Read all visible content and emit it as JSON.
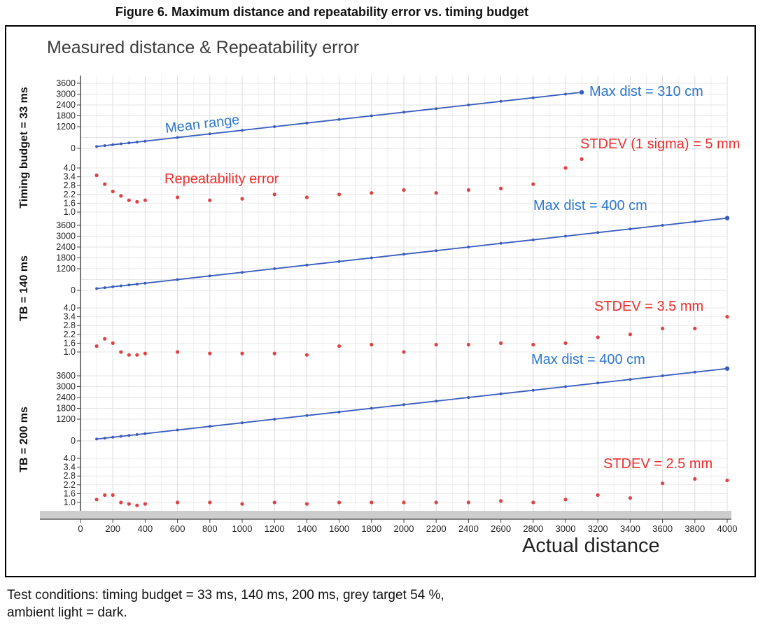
{
  "figure": {
    "caption": "Figure 6. Maximum distance and repeatability error vs. timing budget"
  },
  "notes": {
    "line1": "Test conditions: timing budget = 33 ms, 140 ms, 200 ms, grey target 54 %,",
    "line2": "ambient light = dark."
  },
  "chart_data": {
    "type": "line",
    "title": "Measured distance & Repeatability error",
    "xlabel": "Actual distance",
    "xlim": [
      0,
      4000
    ],
    "x_ticks": [
      0,
      200,
      400,
      600,
      800,
      1000,
      1200,
      1400,
      1600,
      1800,
      2000,
      2200,
      2400,
      2600,
      2800,
      3000,
      3200,
      3400,
      3600,
      3800,
      4000
    ],
    "range_axis": {
      "tick_labels": [
        3600,
        3000,
        2400,
        1800,
        1200,
        0
      ],
      "grid_step": 600,
      "lim": [
        0,
        3600
      ],
      "units": "mm"
    },
    "error_axis": {
      "ticks": [
        1.0,
        1.6,
        2.2,
        2.8,
        3.4,
        4.0
      ],
      "lim": [
        1.0,
        4.0
      ],
      "units": "mm"
    },
    "series_labels": {
      "mean_range": "Mean range",
      "repeatability": "Repeatability error"
    },
    "colors": {
      "mean_range": "#3a5dbe",
      "repeatability": "#e04343",
      "blue_text": "#2e77d0",
      "red_text": "#f22d2d"
    },
    "panels": [
      {
        "panel_label": "Timing budget = 33 ms",
        "max_dist_label": "Max dist = 310 cm",
        "stdev_label": "STDEV (1 sigma) = 5 mm",
        "x": [
          100,
          150,
          200,
          250,
          300,
          350,
          400,
          600,
          800,
          1000,
          1200,
          1400,
          1600,
          1800,
          2000,
          2200,
          2400,
          2600,
          2800,
          3000,
          3100
        ],
        "mean_range": [
          100,
          150,
          200,
          250,
          300,
          350,
          400,
          600,
          800,
          1000,
          1200,
          1400,
          1600,
          1800,
          2000,
          2200,
          2400,
          2600,
          2800,
          3000,
          3100
        ],
        "repeatability": [
          3.5,
          2.9,
          2.4,
          2.1,
          1.8,
          1.7,
          1.8,
          2.0,
          1.8,
          1.9,
          2.2,
          2.0,
          2.2,
          2.3,
          2.5,
          2.3,
          2.5,
          2.6,
          2.9,
          4.0,
          4.6
        ]
      },
      {
        "panel_label": "TB = 140 ms",
        "max_dist_label": "Max dist = 400 cm",
        "stdev_label": "STDEV = 3.5 mm",
        "x": [
          100,
          150,
          200,
          250,
          300,
          350,
          400,
          600,
          800,
          1000,
          1200,
          1400,
          1600,
          1800,
          2000,
          2200,
          2400,
          2600,
          2800,
          3000,
          3200,
          3400,
          3600,
          3800,
          4000
        ],
        "mean_range": [
          100,
          150,
          200,
          250,
          300,
          350,
          400,
          600,
          800,
          1000,
          1200,
          1400,
          1600,
          1800,
          2000,
          2200,
          2400,
          2600,
          2800,
          3000,
          3200,
          3400,
          3600,
          3800,
          4000
        ],
        "repeatability": [
          1.4,
          1.9,
          1.6,
          1.0,
          0.8,
          0.8,
          0.9,
          1.0,
          0.9,
          0.9,
          0.9,
          0.8,
          1.4,
          1.5,
          1.0,
          1.5,
          1.5,
          1.6,
          1.5,
          1.6,
          2.0,
          2.2,
          2.6,
          2.6,
          3.4
        ]
      },
      {
        "panel_label": "TB = 200 ms",
        "max_dist_label": "Max dist = 400 cm",
        "stdev_label": "STDEV =  2.5 mm",
        "x": [
          100,
          150,
          200,
          250,
          300,
          350,
          400,
          600,
          800,
          1000,
          1200,
          1400,
          1600,
          1800,
          2000,
          2200,
          2400,
          2600,
          2800,
          3000,
          3200,
          3400,
          3600,
          3800,
          4000
        ],
        "mean_range": [
          100,
          150,
          200,
          250,
          300,
          350,
          400,
          600,
          800,
          1000,
          1200,
          1400,
          1600,
          1800,
          2000,
          2200,
          2400,
          2600,
          2800,
          3000,
          3200,
          3400,
          3600,
          3800,
          4000
        ],
        "repeatability": [
          1.2,
          1.5,
          1.5,
          1.0,
          0.9,
          0.8,
          0.9,
          1.0,
          1.0,
          0.9,
          1.0,
          0.9,
          1.0,
          1.0,
          1.0,
          1.0,
          1.0,
          1.1,
          1.0,
          1.2,
          1.5,
          1.3,
          2.3,
          2.6,
          2.5
        ]
      }
    ]
  }
}
